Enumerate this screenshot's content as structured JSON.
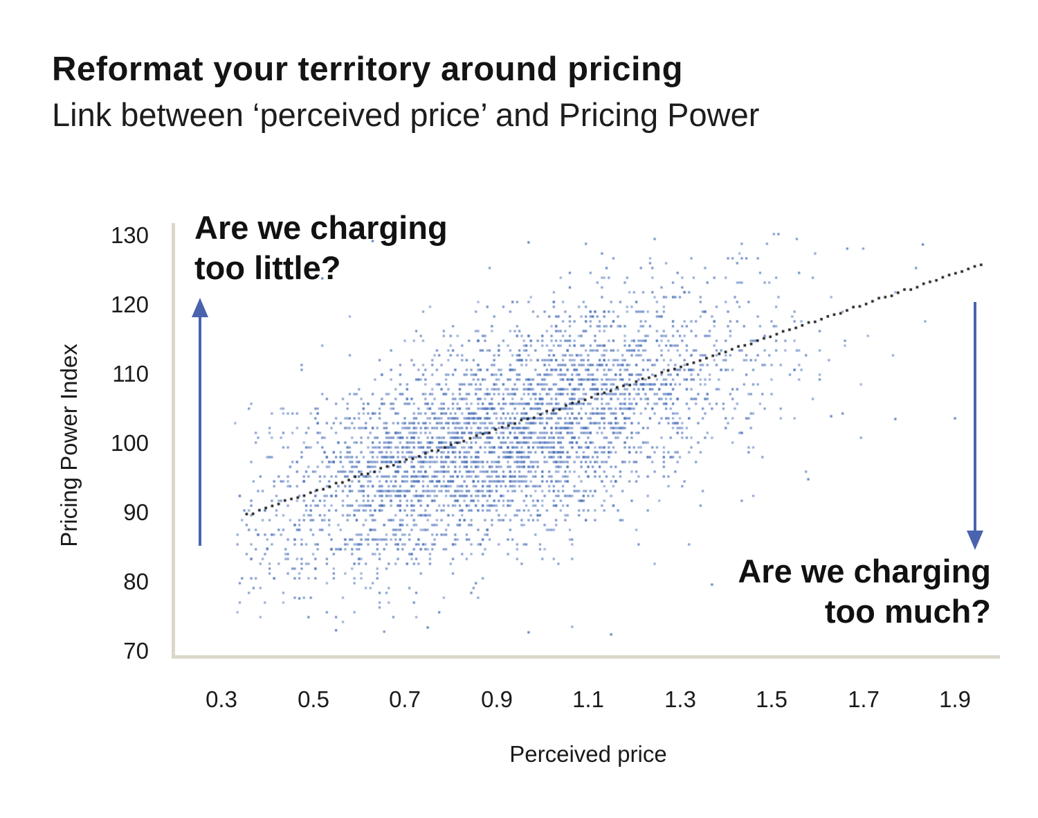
{
  "header": {
    "title": "Reformat your territory around pricing",
    "subtitle": "Link between ‘perceived price’ and Pricing Power"
  },
  "annotations": {
    "left": {
      "line1": "Are we charging",
      "line2": "too little?"
    },
    "right": {
      "line1": "Are we charging",
      "line2": "too much?"
    }
  },
  "chart_data": {
    "type": "scatter",
    "title": "Link between perceived price and Pricing Power",
    "xlabel": "Perceived price",
    "ylabel": "Pricing Power Index",
    "x_ticks": [
      "0.3",
      "0.5",
      "0.7",
      "0.9",
      "1.1",
      "1.3",
      "1.5",
      "1.7",
      "1.9"
    ],
    "y_ticks": [
      "130",
      "120",
      "110",
      "100",
      "90",
      "80",
      "70"
    ],
    "xlim": [
      0.19,
      1.99
    ],
    "ylim": [
      70,
      131
    ],
    "grid": false,
    "legend": "none",
    "point_color": "#4a70b8",
    "trend_color": "#1e1e1e",
    "axis_color": "#dbd8cb",
    "arrow_color": "#4a63ae",
    "trend_line": {
      "style": "dotted",
      "x_start": 0.355,
      "y_start": 89.7,
      "x_end": 1.957,
      "y_end": 125.8,
      "dots": 115
    },
    "point_cloud": {
      "n": 3800,
      "seed": 1337,
      "x_mean": 0.91,
      "x_sd": 0.27,
      "x_min": 0.33,
      "x_max": 1.97,
      "slope": 22.3,
      "intercept": 81.8,
      "noise_sd": 7.8,
      "noise_mean": -1.2,
      "y_min": 72.2,
      "y_max": 130.3,
      "x_step": 0.005,
      "y_step": 0.7
    },
    "outlier_points": [
      [
        0.677,
        129.6
      ],
      [
        0.63,
        129.2
      ],
      [
        0.97,
        129.0
      ],
      [
        1.83,
        128.7
      ],
      [
        0.52,
        123.8
      ],
      [
        1.63,
        103.9
      ],
      [
        1.77,
        103.5
      ],
      [
        1.9,
        103.6
      ],
      [
        0.55,
        73.0
      ],
      [
        0.75,
        73.4
      ],
      [
        0.97,
        72.7
      ],
      [
        1.15,
        72.4
      ],
      [
        0.47,
        77.6
      ],
      [
        1.37,
        79.6
      ],
      [
        1.58,
        94.8
      ],
      [
        0.4,
        84.8
      ]
    ]
  }
}
